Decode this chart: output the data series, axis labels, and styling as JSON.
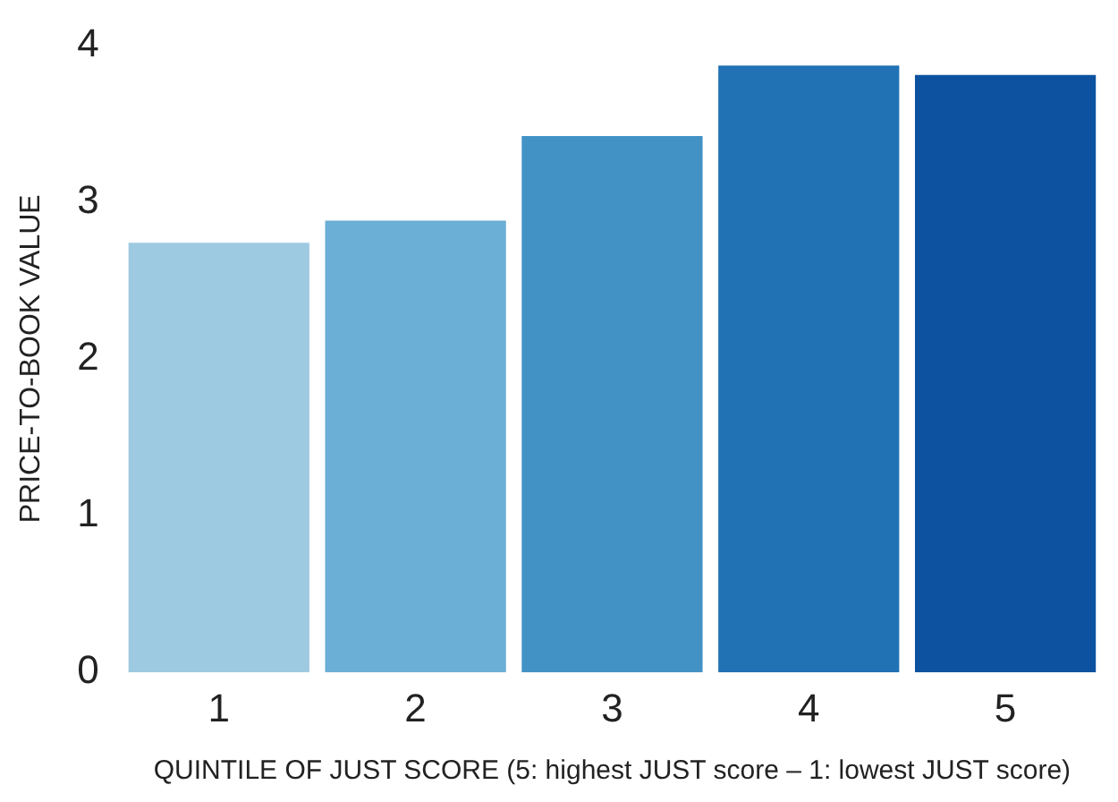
{
  "chart_data": {
    "type": "bar",
    "xlabel": "QUINTILE OF JUST SCORE (5: highest JUST score – 1: lowest JUST score)",
    "ylabel": "PRICE-TO-BOOK VALUE",
    "categories": [
      "1",
      "2",
      "3",
      "4",
      "5"
    ],
    "values": [
      2.74,
      2.88,
      3.42,
      3.87,
      3.81
    ],
    "colors": [
      "#9ecae1",
      "#6baed6",
      "#4292c6",
      "#2171b5",
      "#0d52a0"
    ],
    "ylim": [
      0,
      4
    ],
    "yticks": [
      0,
      1,
      2,
      3,
      4
    ],
    "grid": false,
    "legend": false
  }
}
